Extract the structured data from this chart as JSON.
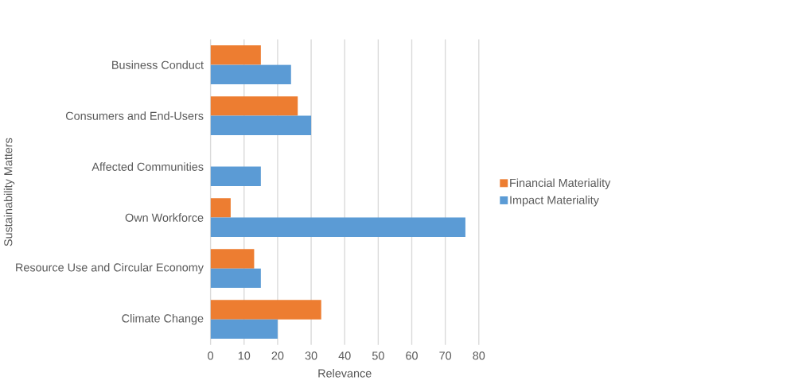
{
  "chart_data": {
    "type": "bar",
    "orientation": "horizontal",
    "xlabel": "Relevance",
    "ylabel": "Sustainability Matters",
    "categories": [
      "Business Conduct",
      "Consumers and End-Users",
      "Affected Communities",
      "Own Workforce",
      "Resource Use and Circular Economy",
      "Climate Change"
    ],
    "series": [
      {
        "name": "Financial Materiality",
        "color": "#ed7d31",
        "values": [
          15,
          26,
          null,
          6,
          13,
          33
        ]
      },
      {
        "name": "Impact Materiality",
        "color": "#5b9bd5",
        "values": [
          24,
          30,
          15,
          76,
          15,
          20
        ]
      }
    ],
    "xlim": [
      0,
      80
    ],
    "xticks": [
      0,
      10,
      20,
      30,
      40,
      50,
      60,
      70,
      80
    ],
    "grid": "x",
    "legend": "right"
  }
}
